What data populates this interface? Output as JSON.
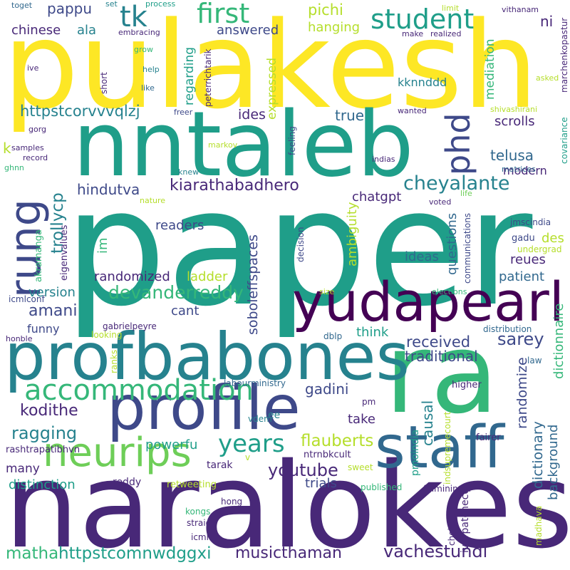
{
  "words": {
    "paper": "paper",
    "pulakesh": "pulakesh",
    "nntaleb": "nntaleb",
    "naralokesh": "naralokesh",
    "ra": "ra",
    "profbabones": "profbabones",
    "profile": "profile",
    "yudapearl": "yudapearl",
    "staff": "staff",
    "rung": "rung",
    "neurips": "neurips",
    "phd": "phd",
    "accommodation": "accommodation",
    "student": "student",
    "first": "first",
    "tk": "tk",
    "years": "years",
    "cheyalante": "cheyalante",
    "kiarathabadhero": "kiarathabadhero",
    "devanderreddy": "devanderreddy",
    "sarey": "sarey",
    "youtube": "youtube",
    "flauberts": "flauberts",
    "trollycp": "trollycp",
    "soboleffspaces": "soboleffspaces",
    "vachestundi": "vachestundi",
    "musicthaman": "musicthaman",
    "httpstcomnwdggxi": "httpstcomnwdggxi",
    "matha": "matha",
    "ragging": "ragging",
    "kodithe": "kodithe",
    "amani": "amani",
    "received": "received",
    "traditional": "traditional",
    "httpstcorvvvqlzj": "httpstcorvvvqlzj",
    "telusa": "telusa",
    "hindutva": "hindutva",
    "chatgpt": "chatgpt",
    "pappu": "pappu",
    "chinese": "chinese",
    "ala": "ala",
    "pichi": "pichi",
    "hanging": "hanging",
    "answered": "answered",
    "regarding": "regarding",
    "expressed": "expressed",
    "ides": "ides",
    "true": "true",
    "scrolls": "scrolls",
    "modern": "modern",
    "ni": "ni",
    "mediation": "mediation",
    "kknnddd": "kknnddd",
    "k": "k",
    "readers": "readers",
    "im": "im",
    "ambiguity": "ambiguity",
    "ideas": "ideas",
    "questions": "questions",
    "des": "des",
    "reues": "reues",
    "patient": "patient",
    "dictionnaire": "dictionnaire",
    "randomized": "randomized",
    "ladder": "ladder",
    "version": "version",
    "cant": "cant",
    "think": "think",
    "funny": "funny",
    "gadini": "gadini",
    "causal": "causal",
    "randomize": "randomize",
    "dictionary": "dictionary",
    "background": "background",
    "take": "take",
    "powerfu": "powerfu",
    "many": "many",
    "distinction": "distinction",
    "trials": "trials",
    "tarak": "tarak",
    "reddy": "reddy",
    "retweeting": "retweeting",
    "rashtrapatibhvn": "rashtrapatibhvn",
    "ntrnbkcult": "ntrnbkcult",
    "gadu": "gadu",
    "jmscindia": "jmscindia",
    "undergrad": "undergrad",
    "eigenvalues": "eigenvalues",
    "akramanga": "akramanga",
    "icmlconf": "icmlconf",
    "gabrielpeyre": "gabrielpeyre",
    "looking": "looking",
    "honble": "honble",
    "dblp": "dblp",
    "distribution": "distribution",
    "law": "law",
    "labourministry": "labourministry",
    "higher": "higher",
    "fairer": "fairer",
    "pmoindia": "pmoindia",
    "indsupremecourt": "indsupremecourt",
    "vdem": "vdem",
    "ee": "ee",
    "pm": "pm",
    "v": "v",
    "sweet": "sweet",
    "published": "published",
    "finminindia": "finminindia",
    "hong": "hong",
    "kongs": "kongs",
    "straig": "straig",
    "icml": "icml",
    "ivorpatcheco": "ivorpatcheco",
    "choices": "choices",
    "madhava": "madhava",
    "toget": "toget",
    "set": "set",
    "process": "process",
    "limit": "limit",
    "vithanam": "vithanam",
    "embracing": "embracing",
    "make": "make",
    "realized": "realized",
    "grow": "grow",
    "marchenkopastur": "marchenkopastur",
    "ive": "ive",
    "help": "help",
    "short": "short",
    "like": "like",
    "peterrichtarik": "peterrichtarik",
    "asked": "asked",
    "freer": "freer",
    "wanted": "wanted",
    "shivashirani": "shivashirani",
    "covariance": "covariance",
    "gorg": "gorg",
    "samples": "samples",
    "record": "record",
    "ghnn": "ghnn",
    "markov": "markov",
    "feeling": "feeling",
    "indias": "indias",
    "knew": "knew",
    "matrices": "matrices",
    "voted": "voted",
    "life": "life",
    "nature": "nature",
    "communications": "communications",
    "decision": "decision",
    "size": "size",
    "elections": "elections",
    "ranks": "ranks"
  },
  "colors": {
    "yellow": "#fde725",
    "lime": "#b5de2b",
    "green": "#6ece58",
    "mint": "#35b779",
    "teal": "#1f9e89",
    "cyan": "#26828e",
    "blue": "#31688e",
    "indigo": "#3e4989",
    "violet": "#482878",
    "dark": "#440154"
  }
}
